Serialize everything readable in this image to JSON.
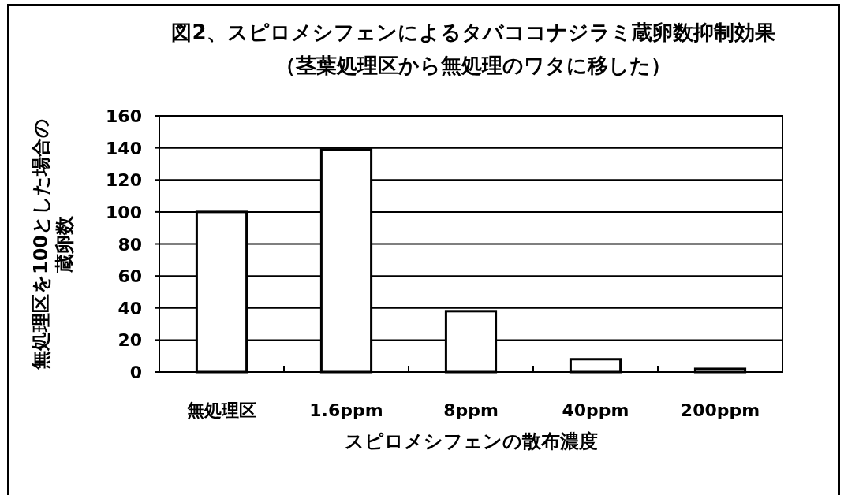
{
  "chart_data": {
    "type": "bar",
    "title": "図2、スピロメシフェンによるタバココナジラミ蔵卵数抑制効果",
    "subtitle": "（茎葉処理区から無処理のワタに移した）",
    "xlabel": "スピロメシフェンの散布濃度",
    "ylabel": "無処理区を100とした場合の蔵卵数",
    "categories": [
      "無処理区",
      "1.6ppm",
      "8ppm",
      "40ppm",
      "200ppm"
    ],
    "values": [
      100,
      139,
      38,
      8,
      2
    ],
    "color": "#ffffff",
    "ylim": [
      0,
      160
    ],
    "yticks": [
      0,
      20,
      40,
      60,
      80,
      100,
      120,
      140,
      160
    ],
    "grid": "y"
  }
}
